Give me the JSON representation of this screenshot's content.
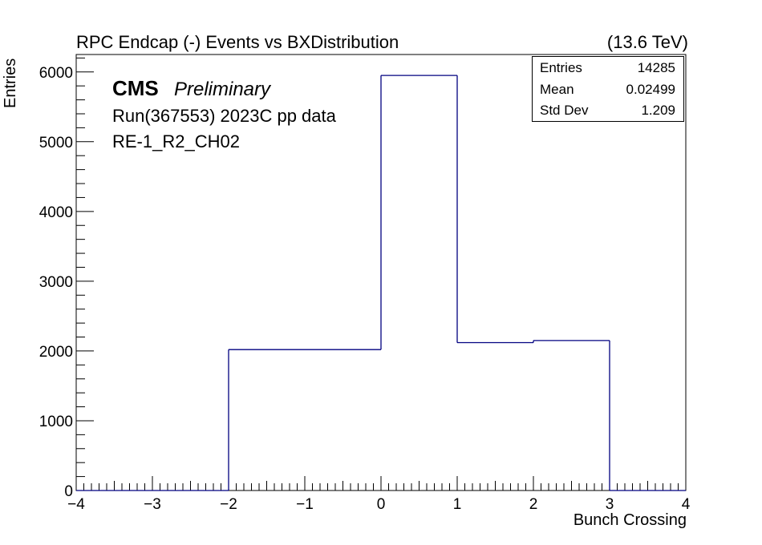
{
  "header": {
    "title": "RPC Endcap (-)  Events vs BXDistribution",
    "energy": "(13.6 TeV)"
  },
  "annotations": {
    "experiment": "CMS",
    "status": "Preliminary",
    "run": "Run(367553) 2023C pp data",
    "chamber": "RE-1_R2_CH02"
  },
  "stats_box": {
    "rows": [
      {
        "name": "Entries",
        "value": "14285"
      },
      {
        "name": "Mean",
        "value": "0.02499"
      },
      {
        "name": "Std Dev",
        "value": "1.209"
      }
    ]
  },
  "chart_data": {
    "type": "bar",
    "style": "step-histogram",
    "xlabel": "Bunch Crossing",
    "ylabel": "Entries",
    "xlim": [
      -4,
      4
    ],
    "ylim": [
      0,
      6250
    ],
    "bin_edges": [
      -4,
      -3,
      -2,
      -1,
      0,
      1,
      2,
      3,
      4
    ],
    "values": [
      0,
      0,
      2020,
      2020,
      5950,
      2120,
      2150,
      0
    ],
    "x_ticks": [
      -4,
      -3,
      -2,
      -1,
      0,
      1,
      2,
      3,
      4
    ],
    "x_tick_labels": [
      "−4",
      "−3",
      "−2",
      "−1",
      "0",
      "1",
      "2",
      "3",
      "4"
    ],
    "y_ticks": [
      0,
      1000,
      2000,
      3000,
      4000,
      5000,
      6000
    ],
    "y_tick_labels": [
      "0",
      "1000",
      "2000",
      "3000",
      "4000",
      "5000",
      "6000"
    ],
    "line_color": "#000080",
    "grid": false,
    "legend": "none"
  }
}
